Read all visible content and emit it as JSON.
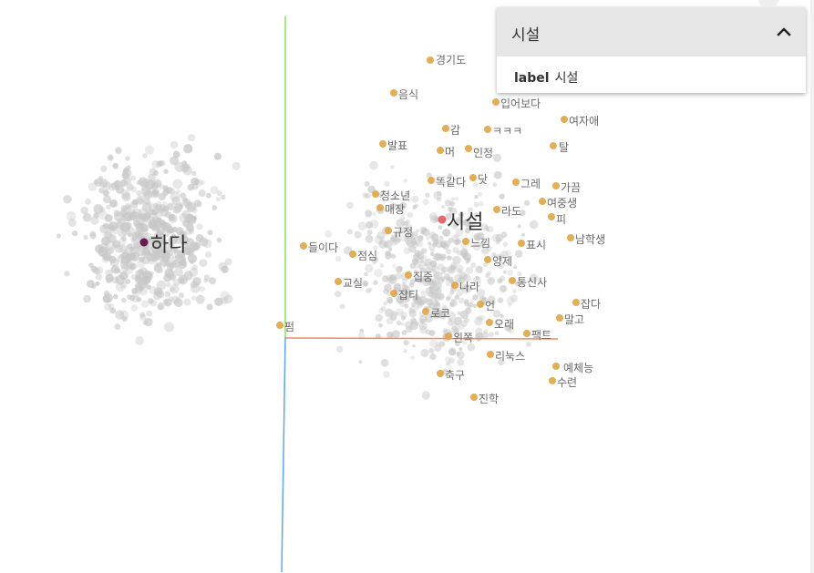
{
  "info_card": {
    "title": "시설",
    "field_key": "label",
    "field_value": "시설"
  },
  "colors": {
    "x_axis": "#f08a5d",
    "y_axis": "#88e25a",
    "z_axis": "#5aa7f0",
    "highlight_point": "#e0a544",
    "selected_point": "#e8666a",
    "anchor_point": "#6a1a4c",
    "background_point": "#c8c8c8"
  },
  "labels": [
    {
      "text": "하다",
      "big": true
    },
    {
      "text": "시설",
      "big": true
    },
    {
      "text": "경기도"
    },
    {
      "text": "음식"
    },
    {
      "text": "입어보다"
    },
    {
      "text": "여자애"
    },
    {
      "text": "감"
    },
    {
      "text": "ㅋㅋㅋ"
    },
    {
      "text": "발표"
    },
    {
      "text": "머"
    },
    {
      "text": "인정"
    },
    {
      "text": "탈"
    },
    {
      "text": "똑같다"
    },
    {
      "text": "닷"
    },
    {
      "text": "그레"
    },
    {
      "text": "가끔"
    },
    {
      "text": "청소년"
    },
    {
      "text": "매장"
    },
    {
      "text": "여중생"
    },
    {
      "text": "라도"
    },
    {
      "text": "피"
    },
    {
      "text": "규정"
    },
    {
      "text": "느낌"
    },
    {
      "text": "표시"
    },
    {
      "text": "남학생"
    },
    {
      "text": "들이다"
    },
    {
      "text": "점심"
    },
    {
      "text": "양제"
    },
    {
      "text": "교실"
    },
    {
      "text": "집중"
    },
    {
      "text": "통신사"
    },
    {
      "text": "나라"
    },
    {
      "text": "잡티"
    },
    {
      "text": "잡다"
    },
    {
      "text": "언"
    },
    {
      "text": "로코"
    },
    {
      "text": "말고"
    },
    {
      "text": "오래"
    },
    {
      "text": "펌"
    },
    {
      "text": "왼쪽"
    },
    {
      "text": "팩트"
    },
    {
      "text": "리눅스"
    },
    {
      "text": "예체능"
    },
    {
      "text": "축구"
    },
    {
      "text": "수련"
    },
    {
      "text": "진학"
    }
  ]
}
